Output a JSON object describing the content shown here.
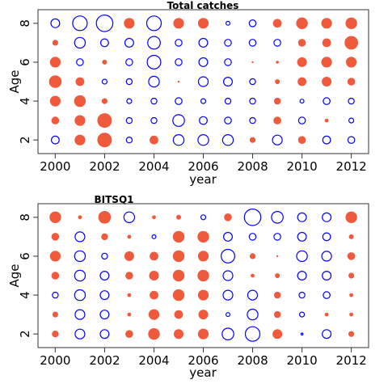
{
  "chart_data": [
    {
      "type": "bubble",
      "title": "Total catches",
      "xlabel": "year",
      "ylabel": "Age",
      "x_ticks": [
        "2000",
        "2002",
        "2004",
        "2006",
        "2008",
        "2010",
        "2012"
      ],
      "y_ticks": [
        "2",
        "4",
        "6",
        "8"
      ],
      "xlim": [
        1999.3,
        2012.7
      ],
      "ylim": [
        1.3,
        8.7
      ],
      "years": [
        2000,
        2001,
        2002,
        2003,
        2004,
        2005,
        2006,
        2007,
        2008,
        2009,
        2010,
        2011,
        2012
      ],
      "ages": [
        2,
        3,
        4,
        5,
        6,
        7,
        8
      ],
      "legend": "none",
      "grid": false,
      "colors": {
        "positive": "#f05a3c",
        "negative": "#0000ff"
      },
      "residuals": [
        [
          -0.4,
          0.55,
          0.75,
          -0.3,
          0.45,
          -0.55,
          -0.55,
          -0.55,
          0.3,
          -0.5,
          0.4,
          -0.4,
          -0.35
        ],
        [
          0.4,
          0.55,
          0.75,
          -0.3,
          -0.3,
          -0.6,
          -0.4,
          -0.35,
          -0.3,
          0.4,
          -0.35,
          0.2,
          -0.25
        ],
        [
          0.55,
          0.6,
          0.3,
          -0.25,
          -0.3,
          -0.35,
          -0.25,
          -0.3,
          -0.3,
          0.35,
          -0.2,
          -0.35,
          -0.3
        ],
        [
          0.65,
          0.45,
          -0.25,
          -0.3,
          -0.55,
          0.1,
          -0.5,
          -0.45,
          -0.3,
          0.25,
          0.45,
          0.5,
          0.4
        ],
        [
          0.55,
          -0.35,
          0.25,
          -0.35,
          -0.7,
          -0.35,
          -0.45,
          -0.35,
          0.05,
          0.15,
          0.5,
          0.55,
          0.55
        ],
        [
          0.3,
          -0.55,
          -0.4,
          -0.45,
          -0.65,
          -0.35,
          -0.45,
          -0.35,
          -0.35,
          -0.35,
          0.4,
          0.45,
          0.7
        ],
        [
          -0.45,
          -0.75,
          -0.85,
          0.55,
          -0.75,
          0.55,
          0.55,
          -0.2,
          -0.35,
          0.45,
          0.6,
          0.55,
          0.6
        ]
      ]
    },
    {
      "type": "bubble",
      "title": "BITSQ1",
      "xlabel": "year",
      "ylabel": "Age",
      "x_ticks": [
        "2000",
        "2002",
        "2004",
        "2006",
        "2008",
        "2010",
        "2012"
      ],
      "y_ticks": [
        "2",
        "4",
        "6",
        "8"
      ],
      "xlim": [
        1999.3,
        2012.7
      ],
      "ylim": [
        1.3,
        8.7
      ],
      "years": [
        2000,
        2001,
        2002,
        2003,
        2004,
        2005,
        2006,
        2007,
        2008,
        2009,
        2010,
        2011,
        2012
      ],
      "ages": [
        2,
        3,
        4,
        5,
        6,
        7,
        8
      ],
      "legend": "none",
      "grid": false,
      "colors": {
        "positive": "#f05a3c",
        "negative": "#0000ff"
      },
      "residuals": [
        [
          0.35,
          -0.5,
          -0.45,
          0.4,
          0.6,
          0.5,
          0.55,
          -0.6,
          -0.75,
          0.5,
          -0.1,
          -0.45,
          0.3
        ],
        [
          0.3,
          -0.5,
          -0.45,
          0.2,
          0.55,
          0.45,
          0.5,
          -0.2,
          -0.55,
          0.35,
          -0.25,
          0.2,
          0.2
        ],
        [
          -0.3,
          -0.55,
          -0.45,
          0.2,
          0.45,
          0.6,
          0.55,
          -0.5,
          -0.5,
          0.35,
          -0.3,
          -0.35,
          0.2
        ],
        [
          0.4,
          -0.55,
          -0.45,
          0.4,
          0.5,
          0.6,
          0.6,
          -0.5,
          0.2,
          0.25,
          -0.45,
          -0.45,
          0.3
        ],
        [
          0.55,
          -0.55,
          -0.3,
          0.5,
          0.45,
          0.6,
          0.55,
          -0.7,
          0.3,
          0.05,
          -0.55,
          -0.5,
          0.4
        ],
        [
          0.4,
          -0.5,
          0.35,
          0.2,
          -0.2,
          0.6,
          0.6,
          -0.45,
          -0.35,
          -0.35,
          -0.45,
          -0.4,
          0.25
        ],
        [
          0.6,
          0.2,
          0.65,
          -0.55,
          0.2,
          0.25,
          -0.25,
          0.4,
          -0.85,
          -0.6,
          -0.45,
          -0.45,
          0.6
        ]
      ]
    }
  ]
}
